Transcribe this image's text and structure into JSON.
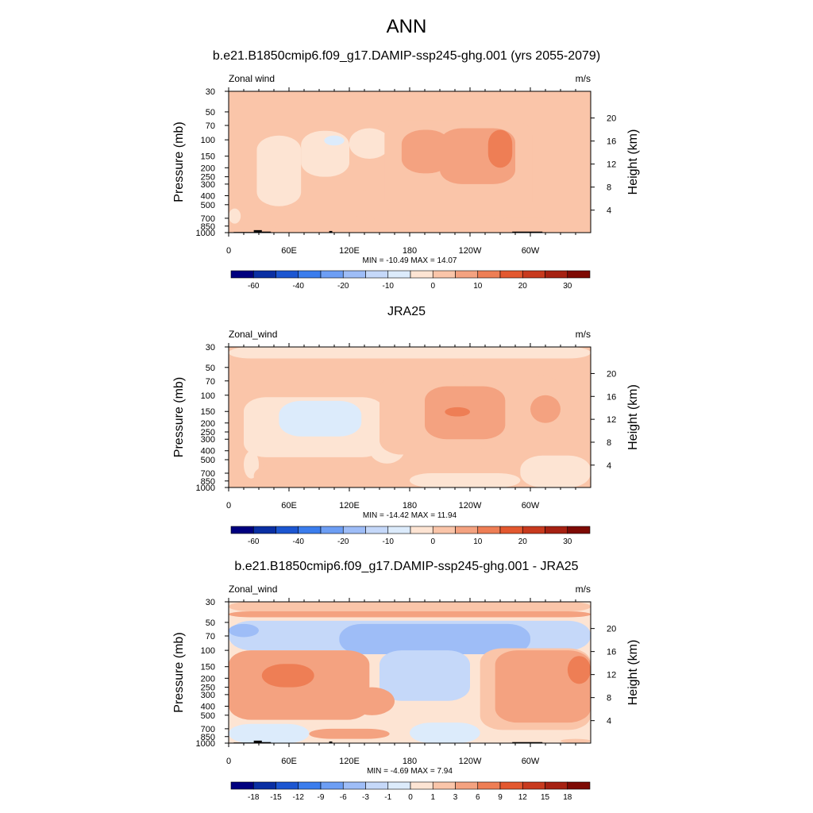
{
  "main_title": "ANN",
  "chart_data": [
    {
      "type": "heatmap",
      "title": "b.e21.B1850cmip6.f09_g17.DAMIP-ssp245-ghg.001 (yrs 2055-2079)",
      "left_label": "Zonal wind",
      "units": "m/s",
      "ylabel": "Pressure (mb)",
      "ylabel_right": "Height (km)",
      "y_ticks": [
        "30",
        "50",
        "70",
        "100",
        "150",
        "200",
        "250",
        "300",
        "400",
        "500",
        "700",
        "850",
        "1000"
      ],
      "y_ticks_right": [
        "20",
        "16",
        "12",
        "8",
        "4"
      ],
      "x_ticks": [
        "0",
        "60E",
        "120E",
        "180",
        "120W",
        "60W"
      ],
      "stats": "MIN = -10.49  MAX =  14.07",
      "colorbar_labels": [
        "-60",
        "-40",
        "-20",
        "-10",
        "0",
        "10",
        "20",
        "30"
      ],
      "colorbar_levels": [
        -70,
        -60,
        -50,
        -40,
        -30,
        -20,
        -15,
        -10,
        -5,
        0,
        5,
        10,
        15,
        20,
        25,
        30,
        35
      ],
      "max": 14.07,
      "min": -10.49,
      "background_value": 2,
      "regions": [
        {
          "value": -3,
          "lon": [
            0,
            12
          ],
          "p": [
            550,
            800
          ]
        },
        {
          "value": 3,
          "lon": [
            0,
            12
          ],
          "p": [
            100,
            250
          ]
        },
        {
          "value": 3,
          "lon": [
            15,
            28
          ],
          "p": [
            150,
            320
          ]
        },
        {
          "value": -3,
          "lon": [
            28,
            72
          ],
          "p": [
            90,
            520
          ]
        },
        {
          "value": -3,
          "lon": [
            72,
            120
          ],
          "p": [
            80,
            250
          ]
        },
        {
          "value": -3,
          "lon": [
            120,
            160
          ],
          "p": [
            75,
            160
          ]
        },
        {
          "value": -7,
          "lon": [
            95,
            115
          ],
          "p": [
            90,
            115
          ]
        },
        {
          "value": 3,
          "lon": [
            10,
            80
          ],
          "p": [
            650,
            1000
          ]
        },
        {
          "value": 3,
          "lon": [
            40,
            145
          ],
          "p": [
            560,
            950
          ]
        },
        {
          "value": 3,
          "lon": [
            155,
            302
          ],
          "p": [
            62,
            650
          ]
        },
        {
          "value": 3,
          "lon": [
            120,
            150
          ],
          "p": [
            350,
            700
          ]
        },
        {
          "value": 7,
          "lon": [
            172,
            220
          ],
          "p": [
            78,
            230
          ]
        },
        {
          "value": 7,
          "lon": [
            210,
            285
          ],
          "p": [
            75,
            300
          ]
        },
        {
          "value": 12,
          "lon": [
            258,
            282
          ],
          "p": [
            78,
            200
          ]
        },
        {
          "value": 3,
          "lon": [
            255,
            330
          ],
          "p": [
            700,
            1000
          ]
        }
      ]
    },
    {
      "type": "heatmap",
      "title": "JRA25",
      "left_label": "Zonal_wind",
      "units": "m/s",
      "ylabel": "Pressure (mb)",
      "ylabel_right": "Height (km)",
      "y_ticks": [
        "30",
        "50",
        "70",
        "100",
        "150",
        "200",
        "250",
        "300",
        "400",
        "500",
        "700",
        "850",
        "1000"
      ],
      "y_ticks_right": [
        "20",
        "16",
        "12",
        "8",
        "4"
      ],
      "x_ticks": [
        "0",
        "60E",
        "120E",
        "180",
        "120W",
        "60W"
      ],
      "stats": "MIN = -14.42  MAX =  11.94",
      "colorbar_labels": [
        "-60",
        "-40",
        "-20",
        "-10",
        "0",
        "10",
        "20",
        "30"
      ],
      "colorbar_levels": [
        -70,
        -60,
        -50,
        -40,
        -30,
        -20,
        -15,
        -10,
        -5,
        0,
        5,
        10,
        15,
        20,
        25,
        30,
        35
      ],
      "max": 11.94,
      "min": -14.42,
      "background_value": 2,
      "regions": [
        {
          "value": -3,
          "lon": [
            0,
            360
          ],
          "p": [
            30,
            40
          ]
        },
        {
          "value": 3,
          "lon": [
            0,
            360
          ],
          "p": [
            40,
            48
          ]
        },
        {
          "value": 3,
          "lon": [
            0,
            25
          ],
          "p": [
            50,
            60
          ]
        },
        {
          "value": -3,
          "lon": [
            15,
            155
          ],
          "p": [
            105,
            470
          ]
        },
        {
          "value": -3,
          "lon": [
            15,
            30
          ],
          "p": [
            400,
            800
          ]
        },
        {
          "value": -3,
          "lon": [
            140,
            175
          ],
          "p": [
            160,
            550
          ]
        },
        {
          "value": -7,
          "lon": [
            50,
            132
          ],
          "p": [
            115,
            280
          ]
        },
        {
          "value": 3,
          "lon": [
            150,
            255
          ],
          "p": [
            60,
            440
          ]
        },
        {
          "value": 3,
          "lon": [
            235,
            330
          ],
          "p": [
            60,
            300
          ]
        },
        {
          "value": 7,
          "lon": [
            195,
            275
          ],
          "p": [
            80,
            300
          ]
        },
        {
          "value": 12,
          "lon": [
            215,
            240
          ],
          "p": [
            135,
            170
          ]
        },
        {
          "value": 7,
          "lon": [
            300,
            330
          ],
          "p": [
            100,
            200
          ]
        },
        {
          "value": 3,
          "lon": [
            25,
            130
          ],
          "p": [
            560,
            1000
          ]
        },
        {
          "value": -3,
          "lon": [
            180,
            290
          ],
          "p": [
            700,
            1000
          ]
        },
        {
          "value": -3,
          "lon": [
            290,
            360
          ],
          "p": [
            450,
            1000
          ]
        }
      ]
    },
    {
      "type": "heatmap",
      "title": "b.e21.B1850cmip6.f09_g17.DAMIP-ssp245-ghg.001 - JRA25",
      "left_label": "Zonal_wind",
      "units": "m/s",
      "ylabel": "Pressure (mb)",
      "ylabel_right": "Height (km)",
      "y_ticks": [
        "30",
        "50",
        "70",
        "100",
        "150",
        "200",
        "250",
        "300",
        "400",
        "500",
        "700",
        "850",
        "1000"
      ],
      "y_ticks_right": [
        "20",
        "16",
        "12",
        "8",
        "4"
      ],
      "x_ticks": [
        "0",
        "60E",
        "120E",
        "180",
        "120W",
        "60W"
      ],
      "stats": "MIN =  -4.69  MAX =   7.94",
      "colorbar_labels": [
        "-18",
        "-15",
        "-12",
        "-9",
        "-6",
        "-3",
        "-1",
        "0",
        "1",
        "3",
        "6",
        "9",
        "12",
        "15",
        "18"
      ],
      "colorbar_levels": [
        -21,
        -18,
        -15,
        -12,
        -9,
        -6,
        -3,
        -1,
        0,
        1,
        3,
        6,
        9,
        12,
        15,
        18,
        21
      ],
      "max": 7.94,
      "min": -4.69,
      "background_value": 0.5,
      "regions": [
        {
          "value": 2,
          "lon": [
            0,
            360
          ],
          "p": [
            30,
            38
          ]
        },
        {
          "value": 4,
          "lon": [
            0,
            360
          ],
          "p": [
            38,
            44
          ]
        },
        {
          "value": -2,
          "lon": [
            0,
            360
          ],
          "p": [
            48,
            100
          ]
        },
        {
          "value": -4,
          "lon": [
            0,
            30
          ],
          "p": [
            52,
            72
          ]
        },
        {
          "value": -4,
          "lon": [
            110,
            300
          ],
          "p": [
            52,
            110
          ]
        },
        {
          "value": -4,
          "lon": [
            170,
            225
          ],
          "p": [
            120,
            220
          ]
        },
        {
          "value": -2,
          "lon": [
            150,
            240
          ],
          "p": [
            100,
            350
          ]
        },
        {
          "value": 4,
          "lon": [
            0,
            140
          ],
          "p": [
            100,
            560
          ]
        },
        {
          "value": 4,
          "lon": [
            120,
            165
          ],
          "p": [
            250,
            500
          ]
        },
        {
          "value": 7,
          "lon": [
            33,
            85
          ],
          "p": [
            140,
            250
          ]
        },
        {
          "value": 2,
          "lon": [
            250,
            360
          ],
          "p": [
            95,
            720
          ]
        },
        {
          "value": 4,
          "lon": [
            265,
            360
          ],
          "p": [
            100,
            600
          ]
        },
        {
          "value": 7,
          "lon": [
            337,
            360
          ],
          "p": [
            115,
            230
          ]
        },
        {
          "value": 4,
          "lon": [
            80,
            160
          ],
          "p": [
            700,
            900
          ]
        },
        {
          "value": -0.5,
          "lon": [
            0,
            80
          ],
          "p": [
            620,
            1000
          ]
        },
        {
          "value": -0.5,
          "lon": [
            180,
            250
          ],
          "p": [
            600,
            1000
          ]
        },
        {
          "value": 2,
          "lon": [
            330,
            360
          ],
          "p": [
            900,
            1000
          ]
        }
      ]
    }
  ]
}
